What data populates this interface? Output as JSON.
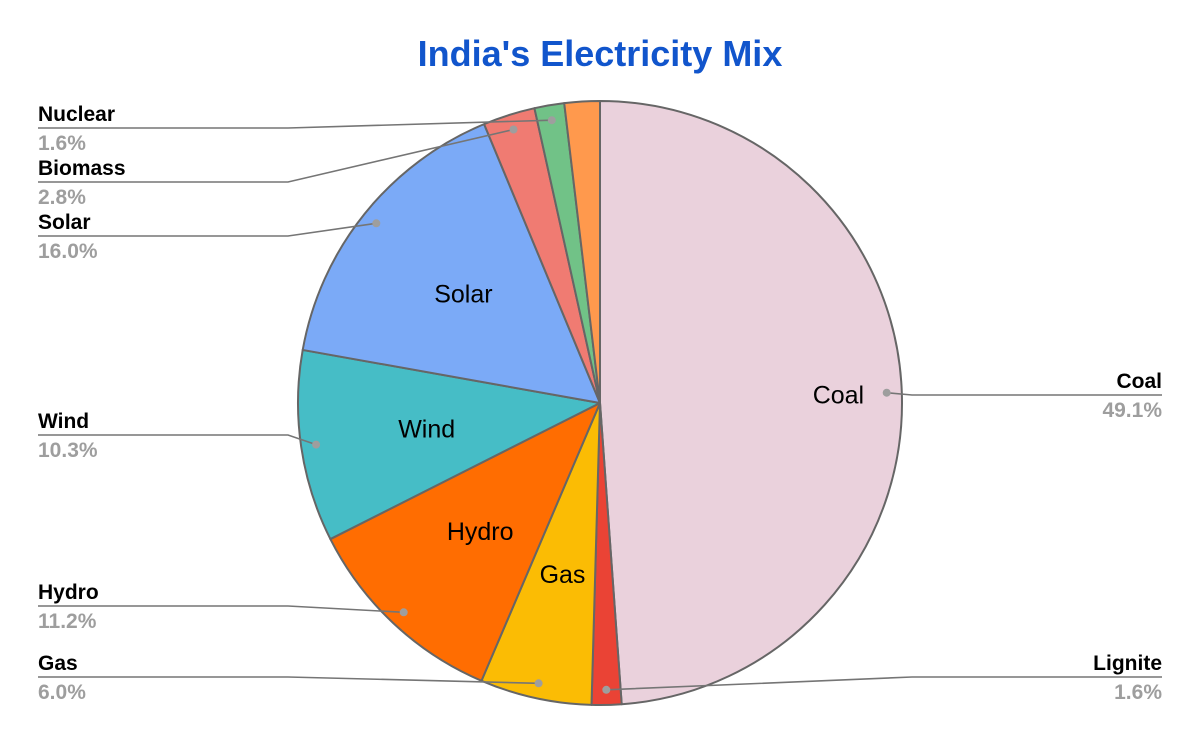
{
  "chart_data": {
    "type": "pie",
    "title": "India's Electricity Mix",
    "slices": [
      {
        "name": "Coal",
        "value": 49.1,
        "label": "49.1%",
        "color": "#ead1dc",
        "inner_label": "Coal"
      },
      {
        "name": "Lignite",
        "value": 1.6,
        "label": "1.6%",
        "color": "#ea4335",
        "inner_label": ""
      },
      {
        "name": "Gas",
        "value": 6.0,
        "label": "6.0%",
        "color": "#fbbc04",
        "inner_label": "Gas"
      },
      {
        "name": "Hydro",
        "value": 11.2,
        "label": "11.2%",
        "color": "#ff6d01",
        "inner_label": "Hydro"
      },
      {
        "name": "Wind",
        "value": 10.3,
        "label": "10.3%",
        "color": "#46bdc6",
        "inner_label": "Wind"
      },
      {
        "name": "Solar",
        "value": 16.0,
        "label": "16.0%",
        "color": "#7baaf7",
        "inner_label": "Solar"
      },
      {
        "name": "Biomass",
        "value": 2.8,
        "label": "2.8%",
        "color": "#f07b72",
        "inner_label": ""
      },
      {
        "name": "Nuclear",
        "value": 1.6,
        "label": "1.6%",
        "color": "#71c287",
        "inner_label": ""
      },
      {
        "name": "",
        "value": 1.9,
        "label": "",
        "color": "#ff994d",
        "inner_label": ""
      }
    ],
    "legend_placement": "sides-with-leader-lines"
  }
}
